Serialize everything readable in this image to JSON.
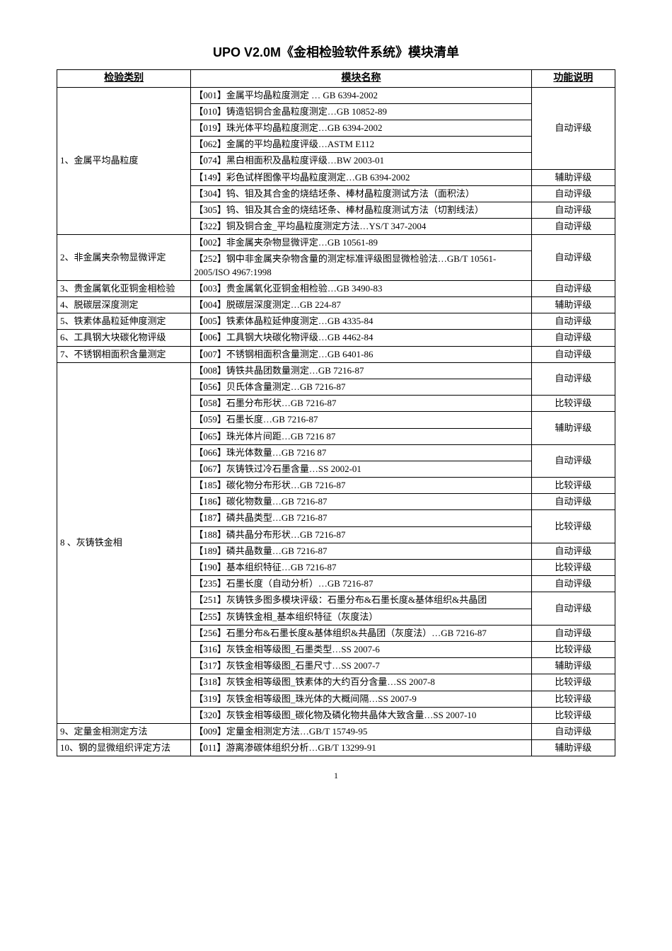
{
  "title": "UPO V2.0M《金相检验软件系统》模块清单",
  "headers": {
    "category": "检验类别",
    "module": "模块名称",
    "func": "功能说明"
  },
  "page_number": "1",
  "categories": [
    {
      "name": "1、金属平均晶粒度",
      "groups": [
        {
          "func": "自动评级",
          "modules": [
            "【001】金属平均晶粒度测定 … GB 6394-2002",
            "【010】铸造铝铜合金晶粒度测定…GB 10852-89",
            "【019】珠光体平均晶粒度测定…GB 6394-2002",
            "【062】金属的平均晶粒度评级…ASTM E112",
            "【074】黑白相面积及晶粒度评级…BW 2003-01"
          ]
        },
        {
          "func": "辅助评级",
          "modules": [
            "【149】彩色试样图像平均晶粒度测定…GB 6394-2002"
          ]
        },
        {
          "func": "自动评级",
          "modules": [
            "【304】钨、钼及其合金的烧结坯条、棒材晶粒度测试方法（面积法）"
          ]
        },
        {
          "func": "自动评级",
          "modules": [
            "【305】钨、钼及其合金的烧结坯条、棒材晶粒度测试方法（切割线法）"
          ]
        },
        {
          "func": "自动评级",
          "modules": [
            "【322】铜及铜合金_平均晶粒度测定方法…YS/T 347-2004"
          ]
        }
      ]
    },
    {
      "name": "2、非金属夹杂物显微评定",
      "groups": [
        {
          "func": "自动评级",
          "modules": [
            "【002】非金属夹杂物显微评定…GB 10561-89",
            "【252】钢中非金属夹杂物含量的测定标准评级图显微检验法…GB/T 10561-2005/ISO 4967:1998"
          ]
        }
      ]
    },
    {
      "name": "3、贵金属氧化亚铜金相检验",
      "groups": [
        {
          "func": "自动评级",
          "modules": [
            "【003】贵金属氧化亚铜金相检验…GB 3490-83"
          ]
        }
      ]
    },
    {
      "name": "4、脱碳层深度测定",
      "groups": [
        {
          "func": "辅助评级",
          "modules": [
            "【004】脱碳层深度测定…GB 224-87"
          ]
        }
      ]
    },
    {
      "name": "5、铁素体晶粒延伸度测定",
      "groups": [
        {
          "func": "自动评级",
          "modules": [
            "【005】铁素体晶粒延伸度测定…GB 4335-84"
          ]
        }
      ]
    },
    {
      "name": "6、工具钢大块碳化物评级",
      "groups": [
        {
          "func": "自动评级",
          "modules": [
            "【006】工具钢大块碳化物评级…GB 4462-84"
          ]
        }
      ]
    },
    {
      "name": "7、不锈钢相面积含量测定",
      "groups": [
        {
          "func": "自动评级",
          "modules": [
            "【007】不锈钢相面积含量测定…GB 6401-86"
          ]
        }
      ]
    },
    {
      "name": "8 、灰铸铁金相",
      "groups": [
        {
          "func": "自动评级",
          "modules": [
            "【008】铸铁共晶团数量测定…GB 7216-87",
            "【056】贝氏体含量测定…GB 7216-87"
          ]
        },
        {
          "func": "比较评级",
          "modules": [
            "【058】石墨分布形状…GB 7216-87"
          ]
        },
        {
          "func": "辅助评级",
          "modules": [
            "【059】石墨长度…GB 7216-87",
            "【065】珠光体片间距…GB 7216 87"
          ]
        },
        {
          "func": "自动评级",
          "modules": [
            "【066】珠光体数量…GB 7216 87",
            "【067】灰铸铁过冷石墨含量…SS 2002-01"
          ]
        },
        {
          "func": "比较评级",
          "modules": [
            "【185】碳化物分布形状…GB 7216-87"
          ]
        },
        {
          "func": "自动评级",
          "modules": [
            "【186】碳化物数量…GB 7216-87"
          ]
        },
        {
          "func": "比较评级",
          "modules": [
            "【187】磷共晶类型…GB 7216-87",
            "【188】磷共晶分布形状…GB 7216-87"
          ]
        },
        {
          "func": "自动评级",
          "modules": [
            "【189】磷共晶数量…GB 7216-87"
          ]
        },
        {
          "func": "比较评级",
          "modules": [
            "【190】基本组织特征…GB 7216-87"
          ]
        },
        {
          "func": "自动评级",
          "modules": [
            "【235】石墨长度（自动分析）…GB 7216-87"
          ]
        },
        {
          "func": "自动评级",
          "modules": [
            "【251】灰铸铁多图多模块评级：石墨分布&石墨长度&基体组织&共晶团",
            "【255】灰铸铁金相_基本组织特征（灰度法）"
          ]
        },
        {
          "func": "自动评级",
          "modules": [
            "【256】石墨分布&石墨长度&基体组织&共晶团（灰度法）…GB 7216-87"
          ]
        },
        {
          "func": "比较评级",
          "modules": [
            "【316】灰铁金相等级图_石墨类型…SS 2007-6"
          ]
        },
        {
          "func": "辅助评级",
          "modules": [
            "【317】灰铁金相等级图_石墨尺寸…SS 2007-7"
          ]
        },
        {
          "func": "比较评级",
          "modules": [
            "【318】灰铁金相等级图_铁素体的大约百分含量…SS 2007-8"
          ]
        },
        {
          "func": "比较评级",
          "modules": [
            "【319】灰铁金相等级图_珠光体的大概间隔…SS 2007-9"
          ]
        },
        {
          "func": "比较评级",
          "modules": [
            "【320】灰铁金相等级图_碳化物及磷化物共晶体大致含量…SS 2007-10"
          ]
        }
      ]
    },
    {
      "name": "9、定量金相测定方法",
      "groups": [
        {
          "func": "自动评级",
          "modules": [
            "【009】定量金相测定方法…GB/T 15749-95"
          ]
        }
      ]
    },
    {
      "name": "10、钢的显微组织评定方法",
      "groups": [
        {
          "func": "辅助评级",
          "modules": [
            "【011】游离渗碳体组织分析…GB/T 13299-91"
          ]
        }
      ]
    }
  ]
}
